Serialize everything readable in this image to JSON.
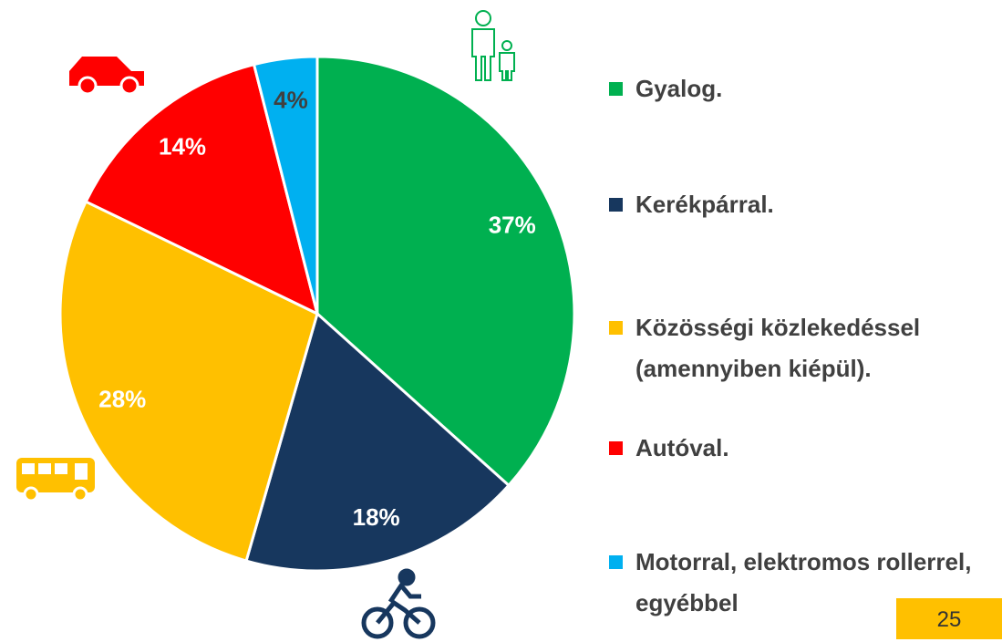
{
  "chart_data": {
    "type": "pie",
    "categories": [
      "Gyalog.",
      "Kerékpárral.",
      "Közösségi közlekedéssel (amennyiben kiépül).",
      "Autóval.",
      "Motorral, elektromos rollerrel, egyébbel"
    ],
    "values": [
      37,
      18,
      28,
      14,
      4
    ],
    "value_labels": [
      "37%",
      "18%",
      "28%",
      "14%",
      "4%"
    ],
    "colors": [
      "#00b050",
      "#17375e",
      "#ffc000",
      "#ff0000",
      "#00b0f0"
    ],
    "label_colors": [
      "#ffffff",
      "#ffffff",
      "#ffffff",
      "#ffffff",
      "#404040"
    ]
  },
  "page_number": "25"
}
